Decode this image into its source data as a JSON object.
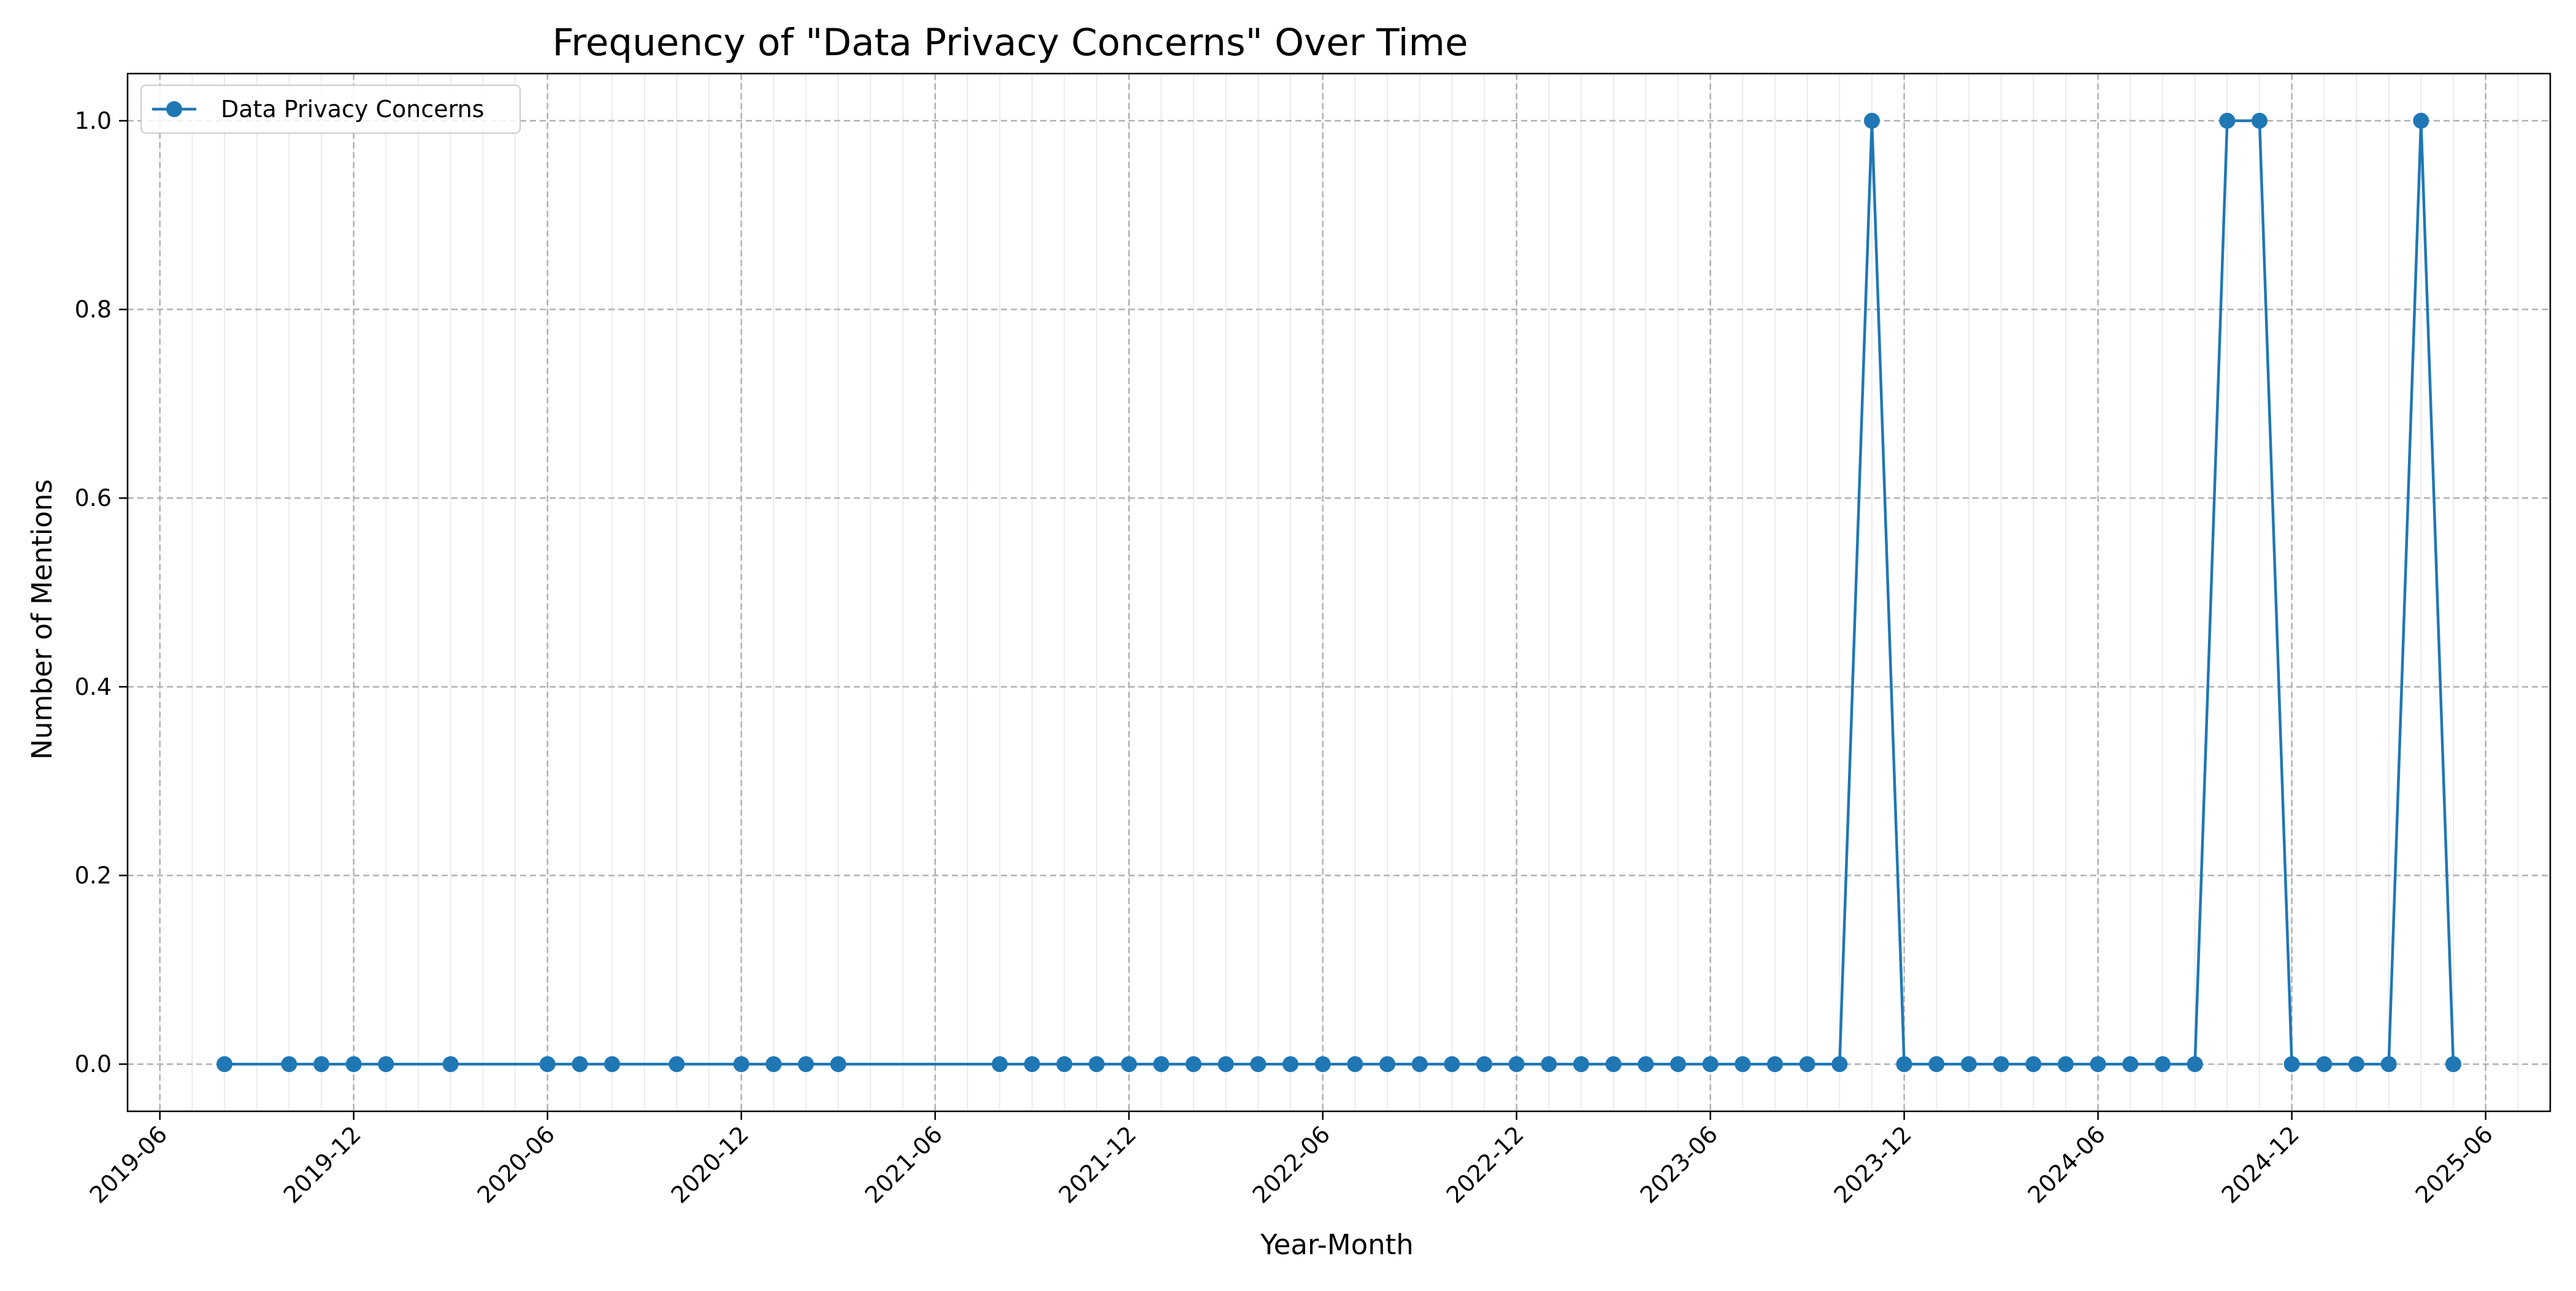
{
  "chart_data": {
    "type": "line",
    "title": "Frequency of \"Data Privacy Concerns\" Over Time",
    "xlabel": "Year-Month",
    "ylabel": "Number of Mentions",
    "xlim": [
      "2019-05-01",
      "2025-08-01"
    ],
    "ylim": [
      -0.05,
      1.05
    ],
    "x_ticks": [
      "2019-06",
      "2019-12",
      "2020-06",
      "2020-12",
      "2021-06",
      "2021-12",
      "2022-06",
      "2022-12",
      "2023-06",
      "2023-12",
      "2024-06",
      "2024-12",
      "2025-06"
    ],
    "y_ticks": [
      "0.0",
      "0.2",
      "0.4",
      "0.6",
      "0.8",
      "1.0"
    ],
    "grid": true,
    "minor_grid": "monthly",
    "legend": "top-left",
    "colors": {
      "series": "#1f77b4",
      "grid": "#b0b0b0",
      "minor_grid": "#e6e6e6"
    },
    "series": [
      {
        "name": "Data Privacy Concerns",
        "marker": "circle",
        "points": [
          {
            "x": "2019-08",
            "y": 0
          },
          {
            "x": "2019-10",
            "y": 0
          },
          {
            "x": "2019-11",
            "y": 0
          },
          {
            "x": "2019-12",
            "y": 0
          },
          {
            "x": "2020-01",
            "y": 0
          },
          {
            "x": "2020-03",
            "y": 0
          },
          {
            "x": "2020-06",
            "y": 0
          },
          {
            "x": "2020-07",
            "y": 0
          },
          {
            "x": "2020-08",
            "y": 0
          },
          {
            "x": "2020-10",
            "y": 0
          },
          {
            "x": "2020-12",
            "y": 0
          },
          {
            "x": "2021-01",
            "y": 0
          },
          {
            "x": "2021-02",
            "y": 0
          },
          {
            "x": "2021-03",
            "y": 0
          },
          {
            "x": "2021-08",
            "y": 0
          },
          {
            "x": "2021-09",
            "y": 0
          },
          {
            "x": "2021-10",
            "y": 0
          },
          {
            "x": "2021-11",
            "y": 0
          },
          {
            "x": "2021-12",
            "y": 0
          },
          {
            "x": "2022-01",
            "y": 0
          },
          {
            "x": "2022-02",
            "y": 0
          },
          {
            "x": "2022-03",
            "y": 0
          },
          {
            "x": "2022-04",
            "y": 0
          },
          {
            "x": "2022-05",
            "y": 0
          },
          {
            "x": "2022-06",
            "y": 0
          },
          {
            "x": "2022-07",
            "y": 0
          },
          {
            "x": "2022-08",
            "y": 0
          },
          {
            "x": "2022-09",
            "y": 0
          },
          {
            "x": "2022-10",
            "y": 0
          },
          {
            "x": "2022-11",
            "y": 0
          },
          {
            "x": "2022-12",
            "y": 0
          },
          {
            "x": "2023-01",
            "y": 0
          },
          {
            "x": "2023-02",
            "y": 0
          },
          {
            "x": "2023-03",
            "y": 0
          },
          {
            "x": "2023-04",
            "y": 0
          },
          {
            "x": "2023-05",
            "y": 0
          },
          {
            "x": "2023-06",
            "y": 0
          },
          {
            "x": "2023-07",
            "y": 0
          },
          {
            "x": "2023-08",
            "y": 0
          },
          {
            "x": "2023-09",
            "y": 0
          },
          {
            "x": "2023-10",
            "y": 0
          },
          {
            "x": "2023-11",
            "y": 1
          },
          {
            "x": "2023-12",
            "y": 0
          },
          {
            "x": "2024-01",
            "y": 0
          },
          {
            "x": "2024-02",
            "y": 0
          },
          {
            "x": "2024-03",
            "y": 0
          },
          {
            "x": "2024-04",
            "y": 0
          },
          {
            "x": "2024-05",
            "y": 0
          },
          {
            "x": "2024-06",
            "y": 0
          },
          {
            "x": "2024-07",
            "y": 0
          },
          {
            "x": "2024-08",
            "y": 0
          },
          {
            "x": "2024-09",
            "y": 0
          },
          {
            "x": "2024-10",
            "y": 1
          },
          {
            "x": "2024-11",
            "y": 1
          },
          {
            "x": "2024-12",
            "y": 0
          },
          {
            "x": "2025-01",
            "y": 0
          },
          {
            "x": "2025-02",
            "y": 0
          },
          {
            "x": "2025-03",
            "y": 0
          },
          {
            "x": "2025-04",
            "y": 1
          },
          {
            "x": "2025-05",
            "y": 0
          }
        ]
      }
    ]
  }
}
